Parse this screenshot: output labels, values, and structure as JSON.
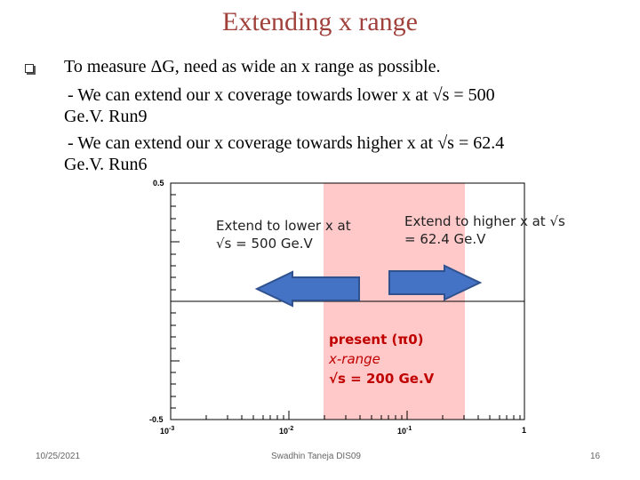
{
  "slide": {
    "title": "Extending x range",
    "bullet": {
      "line1": "To measure ΔG, need as wide an x range as possible.",
      "line2": "- We can extend our x coverage towards lower x at √s = 500",
      "line3": "Ge.V.  Run9",
      "line4": "- We can extend our x coverage towards higher x at √s = 62.4",
      "line5": "Ge.V.   Run6"
    },
    "plot": {
      "y_top": "0.5",
      "y_bottom": "-0.5",
      "x_ticks": [
        "10-3",
        "10-2",
        "10-1",
        "1"
      ],
      "lower_note_1": "Extend to lower x at",
      "lower_note_2": "√s = 500 Ge.V",
      "higher_note_1": "Extend to higher x at √s",
      "higher_note_2": "= 62.4 Ge.V",
      "present_1": "present (π0)",
      "present_2": "x-range",
      "present_3": "√s = 200 Ge.V",
      "colors": {
        "band": "#ffc9c9",
        "arrow": "#4472c4",
        "arrow_edge": "#2f528f"
      }
    },
    "footer": {
      "date": "10/25/2021",
      "author": "Swadhin Taneja DIS09",
      "page": "16"
    }
  }
}
